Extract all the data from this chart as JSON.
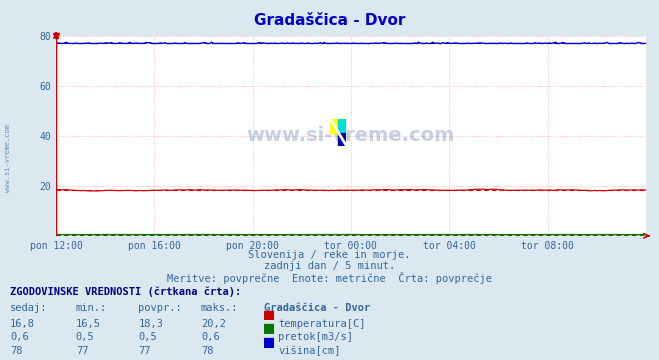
{
  "title": "Gradaščica - Dvor",
  "bg_color": "#dce8f0",
  "plot_bg_color": "#ffffff",
  "grid_color": "#ffaaaa",
  "x_labels": [
    "pon 12:00",
    "pon 16:00",
    "pon 20:00",
    "tor 00:00",
    "tor 04:00",
    "tor 08:00"
  ],
  "x_ticks": [
    0,
    48,
    96,
    144,
    192,
    240
  ],
  "x_max": 288,
  "ylim": [
    0,
    80
  ],
  "yticks": [
    20,
    40,
    60,
    80
  ],
  "n_points": 289,
  "temp_avg": 18.3,
  "temp_min": 16.5,
  "temp_max": 20.2,
  "temp_sedaj": "16,8",
  "temp_min_str": "16,5",
  "temp_avg_str": "18,3",
  "temp_max_str": "20,2",
  "pretok_avg": 0.5,
  "pretok_min": 0.5,
  "pretok_max": 0.6,
  "pretok_sedaj": "0,6",
  "pretok_min_str": "0,5",
  "pretok_avg_str": "0,5",
  "pretok_max_str": "0,6",
  "visina_avg": 77.0,
  "visina_min": 77.0,
  "visina_max": 78.0,
  "visina_sedaj": "78",
  "visina_min_str": "77",
  "visina_avg_str": "77",
  "visina_max_str": "78",
  "temp_color": "#cc0000",
  "pretok_color": "#007700",
  "visina_color": "#0000cc",
  "subtitle1": "Slovenija / reke in morje.",
  "subtitle2": "zadnji dan / 5 minut.",
  "subtitle3": "Meritve: povprečne  Enote: metrične  Črta: povprečje",
  "table_header": "ZGODOVINSKE VREDNOSTI (črtkana črta):",
  "col_headers": [
    "sedaj:",
    "min.:",
    "povpr.:",
    "maks.:",
    "Gradaščica - Dvor"
  ],
  "row1_label": "temperatura[C]",
  "row2_label": "pretok[m3/s]",
  "row3_label": "višina[cm]",
  "watermark": "www.si-vreme.com",
  "axis_arrow_color": "#cc0000",
  "text_color": "#336699",
  "title_color": "#0000cc",
  "left_label": "www.si-vreme.com"
}
